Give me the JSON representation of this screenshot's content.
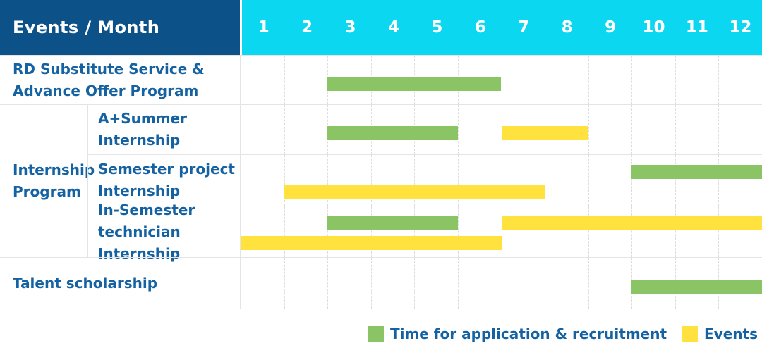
{
  "header": {
    "title": "Events / Month",
    "months": [
      "1",
      "2",
      "3",
      "4",
      "5",
      "6",
      "7",
      "8",
      "9",
      "10",
      "11",
      "12"
    ]
  },
  "colors": {
    "header_bg": "#0d5189",
    "months_bg": "#0bd8f0",
    "application": "#8bc465",
    "event": "#ffe23e",
    "text": "#1562a2",
    "border": "#e4e4e4",
    "gridline": "#dcdcdc"
  },
  "chart_data": {
    "type": "gantt",
    "x_axis": {
      "label": "Month",
      "ticks": [
        1,
        2,
        3,
        4,
        5,
        6,
        7,
        8,
        9,
        10,
        11,
        12
      ],
      "range": [
        1,
        12
      ]
    },
    "group": {
      "label": "Internship\nProgram",
      "covers_rows": [
        1,
        2,
        3
      ]
    },
    "rows": [
      {
        "label": "RD Substitute Service &\nAdvance Offer Program",
        "bars": [
          {
            "series": "application",
            "start_month": 3,
            "end_month": 6,
            "band": "single"
          }
        ]
      },
      {
        "label": "A+Summer\nInternship",
        "bars": [
          {
            "series": "application",
            "start_month": 3,
            "end_month": 5,
            "band": "single"
          },
          {
            "series": "event",
            "start_month": 7,
            "end_month": 8,
            "band": "single"
          }
        ]
      },
      {
        "label": "Semester project\nInternship",
        "bars": [
          {
            "series": "application",
            "start_month": 10,
            "end_month": 12,
            "band": "top"
          },
          {
            "series": "event",
            "start_month": 2,
            "end_month": 7,
            "band": "bottom"
          }
        ]
      },
      {
        "label": "In-Semester\ntechnician Internship",
        "bars": [
          {
            "series": "application",
            "start_month": 3,
            "end_month": 5,
            "band": "top"
          },
          {
            "series": "event",
            "start_month": 7,
            "end_month": 12,
            "band": "top"
          },
          {
            "series": "event",
            "start_month": 1,
            "end_month": 6,
            "band": "bottom"
          }
        ]
      },
      {
        "label": "Talent scholarship",
        "bars": [
          {
            "series": "application",
            "start_month": 10,
            "end_month": 12,
            "band": "single"
          }
        ]
      }
    ]
  },
  "legend": {
    "application": "Time for application & recruitment",
    "event": "Events"
  }
}
